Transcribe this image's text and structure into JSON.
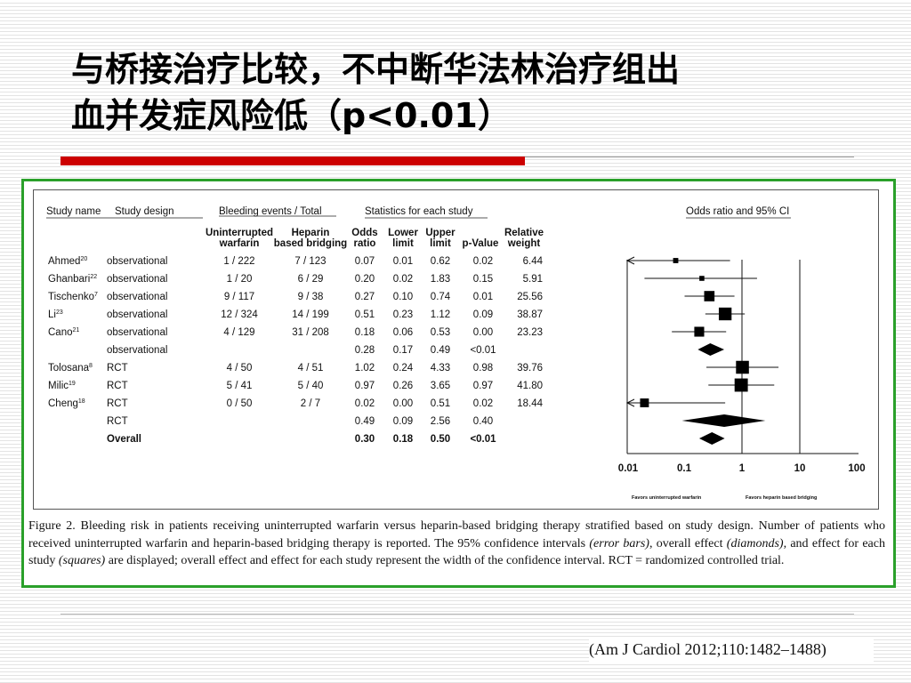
{
  "slide": {
    "title_line1": "与桥接治疗比较，不中断华法林治疗组出",
    "title_line2": "血并发症风险低（p<0.01）",
    "citation": "(Am J Cardiol 2012;110:1482–1488)"
  },
  "figure": {
    "headers": {
      "group_study_name": "Study name",
      "group_study_design": "Study design",
      "group_bleeding": "Bleeding events / Total",
      "group_stats": "Statistics for each study",
      "group_or_ci": "Odds ratio and 95% CI",
      "col_uw_1": "Uninterrupted",
      "col_uw_2": "warfarin",
      "col_hb_1": "Heparin",
      "col_hb_2": "based bridging",
      "col_or_1": "Odds",
      "col_or_2": "ratio",
      "col_lower_1": "Lower",
      "col_lower_2": "limit",
      "col_upper_1": "Upper",
      "col_upper_2": "limit",
      "col_p": "p-Value",
      "col_weight_1": "Relative",
      "col_weight_2": "weight"
    },
    "rows": [
      {
        "study": "Ahmed",
        "ref": "20",
        "design": "observational",
        "uw": "1 / 222",
        "hb": "7 / 123",
        "or": "0.07",
        "lower": "0.01",
        "upper": "0.62",
        "p": "0.02",
        "weight": "6.44"
      },
      {
        "study": "Ghanbari",
        "ref": "22",
        "design": "observational",
        "uw": "1 / 20",
        "hb": "6 / 29",
        "or": "0.20",
        "lower": "0.02",
        "upper": "1.83",
        "p": "0.15",
        "weight": "5.91"
      },
      {
        "study": "Tischenko",
        "ref": "7",
        "design": "observational",
        "uw": "9 / 117",
        "hb": "9 / 38",
        "or": "0.27",
        "lower": "0.10",
        "upper": "0.74",
        "p": "0.01",
        "weight": "25.56"
      },
      {
        "study": "Li",
        "ref": "23",
        "design": "observational",
        "uw": "12 / 324",
        "hb": "14 / 199",
        "or": "0.51",
        "lower": "0.23",
        "upper": "1.12",
        "p": "0.09",
        "weight": "38.87"
      },
      {
        "study": "Cano",
        "ref": "21",
        "design": "observational",
        "uw": "4 / 129",
        "hb": "31 / 208",
        "or": "0.18",
        "lower": "0.06",
        "upper": "0.53",
        "p": "0.00",
        "weight": "23.23"
      },
      {
        "study": "",
        "ref": "",
        "design": "observational",
        "uw": "",
        "hb": "",
        "or": "0.28",
        "lower": "0.17",
        "upper": "0.49",
        "p": "<0.01",
        "weight": ""
      },
      {
        "study": "Tolosana",
        "ref": "8",
        "design": "RCT",
        "uw": "4 / 50",
        "hb": "4 / 51",
        "or": "1.02",
        "lower": "0.24",
        "upper": "4.33",
        "p": "0.98",
        "weight": "39.76"
      },
      {
        "study": "Milic",
        "ref": "19",
        "design": "RCT",
        "uw": "5 / 41",
        "hb": "5 / 40",
        "or": "0.97",
        "lower": "0.26",
        "upper": "3.65",
        "p": "0.97",
        "weight": "41.80"
      },
      {
        "study": "Cheng",
        "ref": "18",
        "design": "RCT",
        "uw": "0 / 50",
        "hb": "2 / 7",
        "or": "0.02",
        "lower": "0.00",
        "upper": "0.51",
        "p": "0.02",
        "weight": "18.44"
      },
      {
        "study": "",
        "ref": "",
        "design": "RCT",
        "uw": "",
        "hb": "",
        "or": "0.49",
        "lower": "0.09",
        "upper": "2.56",
        "p": "0.40",
        "weight": ""
      },
      {
        "study": "",
        "ref": "",
        "design": "Overall",
        "uw": "",
        "hb": "",
        "or": "0.30",
        "lower": "0.18",
        "upper": "0.50",
        "p": "<0.01",
        "weight": "",
        "bold": true
      }
    ],
    "axis_ticks": [
      "0.01",
      "0.1",
      "1",
      "10",
      "100"
    ],
    "favors_left": "Favors uninterrupted warfarin",
    "favors_right": "Favors heparin based bridging",
    "caption": {
      "p1": "Figure 2. Bleeding risk in patients receiving uninterrupted warfarin versus heparin-based bridging therapy stratified based on study design. Number of patients who received uninterrupted warfarin and heparin-based bridging therapy is reported. The 95% confidence intervals ",
      "i1": "(error bars)",
      "p2": ", overall effect ",
      "i2": "(diamonds)",
      "p3": ", and effect for each study ",
      "i3": "(squares)",
      "p4": " are displayed; overall effect and effect for each study represent the width of the confidence interval. RCT = randomized controlled trial."
    }
  },
  "chart_data": {
    "type": "scatter",
    "title": "Odds ratio and 95% CI",
    "x_scale": "log",
    "xlim": [
      0.01,
      100
    ],
    "x_ticks": [
      0.01,
      0.1,
      1,
      10,
      100
    ],
    "categories": [
      "Ahmed",
      "Ghanbari",
      "Tischenko",
      "Li",
      "Cano",
      "observational",
      "Tolosana",
      "Milic",
      "Cheng",
      "RCT",
      "Overall"
    ],
    "points": [
      {
        "label": "Ahmed",
        "or": 0.07,
        "lower": 0.01,
        "upper": 0.62,
        "weight": 6.44,
        "shape": "square"
      },
      {
        "label": "Ghanbari",
        "or": 0.2,
        "lower": 0.02,
        "upper": 1.83,
        "weight": 5.91,
        "shape": "square"
      },
      {
        "label": "Tischenko",
        "or": 0.27,
        "lower": 0.1,
        "upper": 0.74,
        "weight": 25.56,
        "shape": "square"
      },
      {
        "label": "Li",
        "or": 0.51,
        "lower": 0.23,
        "upper": 1.12,
        "weight": 38.87,
        "shape": "square"
      },
      {
        "label": "Cano",
        "or": 0.18,
        "lower": 0.06,
        "upper": 0.53,
        "weight": 23.23,
        "shape": "square"
      },
      {
        "label": "observational",
        "or": 0.28,
        "lower": 0.17,
        "upper": 0.49,
        "shape": "diamond"
      },
      {
        "label": "Tolosana",
        "or": 1.02,
        "lower": 0.24,
        "upper": 4.33,
        "weight": 39.76,
        "shape": "square"
      },
      {
        "label": "Milic",
        "or": 0.97,
        "lower": 0.26,
        "upper": 3.65,
        "weight": 41.8,
        "shape": "square"
      },
      {
        "label": "Cheng",
        "or": 0.02,
        "lower": 0.0,
        "upper": 0.51,
        "weight": 18.44,
        "shape": "square"
      },
      {
        "label": "RCT",
        "or": 0.49,
        "lower": 0.09,
        "upper": 2.56,
        "shape": "diamond"
      },
      {
        "label": "Overall",
        "or": 0.3,
        "lower": 0.18,
        "upper": 0.5,
        "shape": "diamond"
      }
    ]
  }
}
